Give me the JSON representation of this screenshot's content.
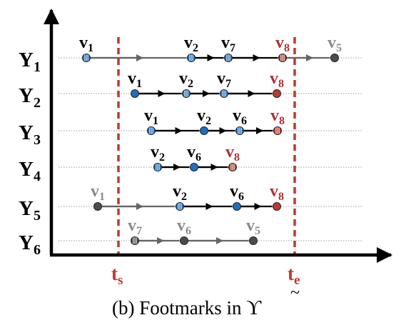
{
  "colors": {
    "axis": "#000000",
    "threshold": "#c0392b",
    "blue_node": "#1f6fbf",
    "red_node": "#c0392b",
    "gray_node": "#4d4d4d",
    "black_arrow": "#000000",
    "gray_arrow": "#666666",
    "red_label": "#b03030",
    "gray_label": "#8a8a8a",
    "black_label": "#000000",
    "guide": "#9a9a9a"
  },
  "thresholds": [
    {
      "name": "t",
      "sub": "s"
    },
    {
      "name": "t",
      "sub": "e"
    }
  ],
  "caption": {
    "prefix": "(b) Footmarks in ",
    "symbol": "ϒ",
    "accent": "~"
  },
  "rows": [
    {
      "name": "Y",
      "sub": "1",
      "nodes": [
        {
          "label": "v",
          "sub": "1",
          "kind": "blue-striped",
          "label_color": "black"
        },
        {
          "label": "v",
          "sub": "2",
          "kind": "blue-striped",
          "label_color": "black"
        },
        {
          "label": "v",
          "sub": "7",
          "kind": "blue-striped",
          "label_color": "black"
        },
        {
          "label": "v",
          "sub": "8",
          "kind": "red-striped",
          "label_color": "red"
        },
        {
          "label": "v",
          "sub": "5",
          "kind": "gray",
          "label_color": "gray"
        }
      ],
      "edges": [
        "gray",
        "black",
        "black",
        "gray"
      ]
    },
    {
      "name": "Y",
      "sub": "2",
      "nodes": [
        {
          "label": "v",
          "sub": "1",
          "kind": "blue",
          "label_color": "black"
        },
        {
          "label": "v",
          "sub": "2",
          "kind": "blue-striped",
          "label_color": "black"
        },
        {
          "label": "v",
          "sub": "7",
          "kind": "blue-striped",
          "label_color": "black"
        },
        {
          "label": "v",
          "sub": "8",
          "kind": "red",
          "label_color": "red"
        }
      ],
      "edges": [
        "black",
        "black",
        "black"
      ]
    },
    {
      "name": "Y",
      "sub": "3",
      "nodes": [
        {
          "label": "v",
          "sub": "1",
          "kind": "blue-striped",
          "label_color": "black"
        },
        {
          "label": "v",
          "sub": "2",
          "kind": "blue",
          "label_color": "black"
        },
        {
          "label": "v",
          "sub": "6",
          "kind": "blue-striped",
          "label_color": "black"
        },
        {
          "label": "v",
          "sub": "8",
          "kind": "red-striped",
          "label_color": "red"
        }
      ],
      "edges": [
        "black",
        "black",
        "black"
      ]
    },
    {
      "name": "Y",
      "sub": "4",
      "nodes": [
        {
          "label": "v",
          "sub": "2",
          "kind": "blue-striped",
          "label_color": "black"
        },
        {
          "label": "v",
          "sub": "6",
          "kind": "blue",
          "label_color": "black"
        },
        {
          "label": "v",
          "sub": "8",
          "kind": "red-striped",
          "label_color": "red"
        }
      ],
      "edges": [
        "black",
        "black"
      ]
    },
    {
      "name": "Y",
      "sub": "5",
      "nodes": [
        {
          "label": "v",
          "sub": "1",
          "kind": "gray",
          "label_color": "gray"
        },
        {
          "label": "v",
          "sub": "2",
          "kind": "blue-striped",
          "label_color": "black"
        },
        {
          "label": "v",
          "sub": "6",
          "kind": "blue",
          "label_color": "black"
        },
        {
          "label": "v",
          "sub": "8",
          "kind": "red",
          "label_color": "red"
        }
      ],
      "edges": [
        "gray",
        "black",
        "black"
      ]
    },
    {
      "name": "Y",
      "sub": "6",
      "nodes": [
        {
          "label": "v",
          "sub": "7",
          "kind": "gray-striped",
          "label_color": "gray"
        },
        {
          "label": "v",
          "sub": "6",
          "kind": "gray",
          "label_color": "gray"
        },
        {
          "label": "v",
          "sub": "5",
          "kind": "gray",
          "label_color": "gray"
        }
      ],
      "edges": [
        "gray",
        "gray"
      ]
    }
  ]
}
